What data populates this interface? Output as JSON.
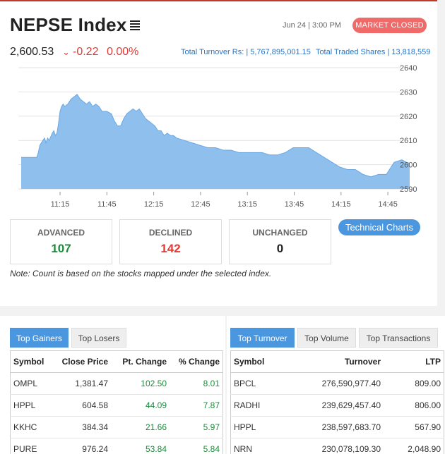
{
  "header": {
    "title": "NEPSE Index",
    "index_value": "2,600.53",
    "change_arrow": "⌄",
    "change_points": "-0.22",
    "change_percent": "0.00%",
    "datetime": "Jun 24 | 3:00 PM",
    "market_status": "MARKET CLOSED",
    "turnover_label": "Total Turnover Rs: | 5,767,895,001.15",
    "shares_label": "Total Traded Shares | 13,818,559"
  },
  "chart_data": {
    "type": "area",
    "title": "",
    "xlabel": "",
    "ylabel": "",
    "ylim": [
      2590,
      2640
    ],
    "x_ticks": [
      "11:15",
      "11:45",
      "12:15",
      "12:45",
      "13:15",
      "13:45",
      "14:15",
      "14:45"
    ],
    "y_ticks": [
      2640,
      2630,
      2620,
      2610,
      2600,
      2590
    ],
    "x_range_minutes": [
      0,
      250
    ],
    "x_tick_minutes": [
      60,
      90,
      120,
      150,
      180,
      210,
      240,
      270
    ],
    "series": [
      {
        "color": "#8fbfec",
        "x": [
          0,
          10,
          11,
          12,
          14,
          15,
          16,
          17,
          18,
          20,
          21,
          22,
          23,
          24,
          25,
          26,
          27,
          28,
          30,
          32,
          34,
          36,
          38,
          40,
          42,
          44,
          46,
          48,
          50,
          52,
          55,
          58,
          60,
          62,
          64,
          66,
          68,
          70,
          72,
          74,
          76,
          78,
          80,
          82,
          84,
          86,
          88,
          90,
          92,
          94,
          96,
          98,
          100,
          105,
          110,
          115,
          120,
          125,
          130,
          135,
          140,
          145,
          150,
          155,
          160,
          165,
          170,
          175,
          180,
          185,
          190,
          195,
          200,
          205,
          210,
          215,
          220,
          225,
          230,
          235,
          240,
          245,
          248,
          250
        ],
        "y": [
          2603,
          2603,
          2605,
          2608,
          2610,
          2611,
          2609,
          2611,
          2610,
          2613,
          2614,
          2612,
          2613,
          2617,
          2622,
          2624,
          2625,
          2624,
          2625,
          2627,
          2628,
          2629,
          2627,
          2626,
          2625,
          2626,
          2624,
          2625,
          2624,
          2622,
          2622,
          2621,
          2618,
          2616,
          2616,
          2619,
          2621,
          2622,
          2623,
          2622,
          2623,
          2621,
          2619,
          2618,
          2617,
          2616,
          2614,
          2614,
          2612,
          2613,
          2612,
          2612,
          2611,
          2610,
          2609,
          2608,
          2607,
          2607,
          2606,
          2606,
          2605,
          2605,
          2605,
          2605,
          2604,
          2604,
          2605,
          2607,
          2607,
          2607,
          2605,
          2603,
          2601,
          2599,
          2598,
          2598,
          2596,
          2595,
          2596,
          2596,
          2601,
          2602,
          2601,
          2600.5
        ]
      }
    ]
  },
  "stats": {
    "advanced_label": "ADVANCED",
    "advanced_value": "107",
    "declined_label": "DECLINED",
    "declined_value": "142",
    "unchanged_label": "UNCHANGED",
    "unchanged_value": "0",
    "advanced_color": "#1e8a3c",
    "declined_color": "#e53935"
  },
  "technical_charts_label": "Technical Charts",
  "note": "Note: Count is based on the stocks mapped under the selected index.",
  "gainers": {
    "tabs": [
      "Top Gainers",
      "Top Losers"
    ],
    "headers": [
      "Symbol",
      "Close Price",
      "Pt. Change",
      "% Change"
    ],
    "rows": [
      [
        "OMPL",
        "1,381.47",
        "102.50",
        "8.01"
      ],
      [
        "HPPL",
        "604.58",
        "44.09",
        "7.87"
      ],
      [
        "KKHC",
        "384.34",
        "21.66",
        "5.97"
      ],
      [
        "PURE",
        "976.24",
        "53.84",
        "5.84"
      ]
    ]
  },
  "turnover": {
    "tabs": [
      "Top Turnover",
      "Top Volume",
      "Top Transactions"
    ],
    "headers": [
      "Symbol",
      "Turnover",
      "LTP"
    ],
    "rows": [
      [
        "BPCL",
        "276,590,977.40",
        "809.00"
      ],
      [
        "RADHI",
        "239,629,457.40",
        "806.00"
      ],
      [
        "HPPL",
        "238,597,683.70",
        "567.90"
      ],
      [
        "NRN",
        "230,078,109.30",
        "2,048.90"
      ]
    ]
  },
  "colors": {
    "accent": "#4a97e0",
    "negative": "#e53935",
    "positive": "#1e8a3c",
    "badge": "#f06a6a",
    "link": "#2874c5"
  }
}
